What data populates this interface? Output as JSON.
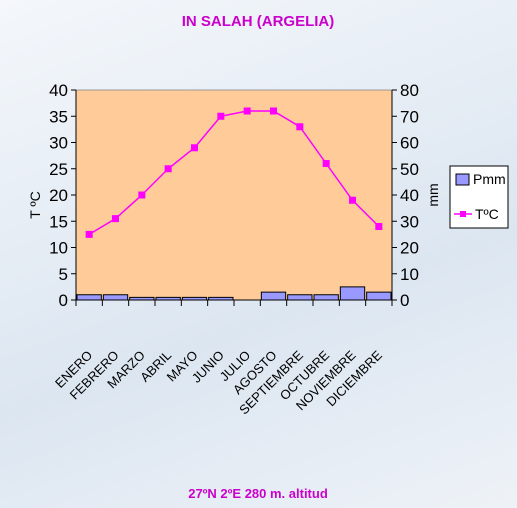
{
  "chart_data": {
    "type": "bar+line",
    "title": "IN SALAH (ARGELIA)",
    "footer": "27ºN 2ºE    280 m. altitud",
    "categories": [
      "ENERO",
      "FEBRERO",
      "MARZO",
      "ABRIL",
      "MAYO",
      "JUNIO",
      "JULIO",
      "AGOSTO",
      "SEPTIEMBRE",
      "OCTUBRE",
      "NOVIEMBRE",
      "DICIEMBRE"
    ],
    "series": [
      {
        "name": "Pmm",
        "axis": "right",
        "values": [
          2,
          2,
          1,
          1,
          1,
          1,
          0,
          3,
          2,
          2,
          5,
          3
        ],
        "color": "#9999ff"
      },
      {
        "name": "TºC",
        "axis": "left",
        "values": [
          12.5,
          15.5,
          20,
          25,
          29,
          35,
          36,
          36,
          33,
          26,
          19,
          14
        ],
        "color": "#ff00ff"
      }
    ],
    "ylabel_left": "T ºC",
    "ylabel_right": "mm",
    "ylim_left": [
      0,
      40
    ],
    "yticks_left": [
      0,
      5,
      10,
      15,
      20,
      25,
      30,
      35,
      40
    ],
    "ylim_right": [
      0,
      80
    ],
    "yticks_right": [
      0,
      10,
      20,
      30,
      40,
      50,
      60,
      70,
      80
    ],
    "plot_background": "#ffcc99",
    "legend_position": "right"
  }
}
